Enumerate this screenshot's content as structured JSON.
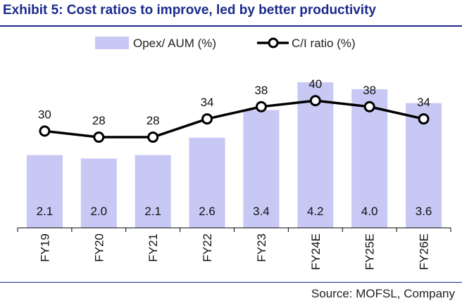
{
  "page": {
    "title": "Exhibit 5: Cost ratios to improve, led by better productivity",
    "source": "Source: MOFSL, Company"
  },
  "colors": {
    "title": "#1b2a8c",
    "bar": "#c8c8f5",
    "line": "#000000",
    "marker_fill": "#ffffff"
  },
  "chart_data": {
    "type": "bar",
    "categories": [
      "FY19",
      "FY20",
      "FY21",
      "FY22",
      "FY23",
      "FY24E",
      "FY25E",
      "FY26E"
    ],
    "series": [
      {
        "name": "Opex/ AUM (%)",
        "type": "bar",
        "axis": "left",
        "values": [
          2.1,
          2.0,
          2.1,
          2.6,
          3.4,
          4.2,
          4.0,
          3.6
        ]
      },
      {
        "name": "C/I ratio (%)",
        "type": "line",
        "axis": "right",
        "values": [
          30,
          28,
          28,
          34,
          38,
          40,
          38,
          34
        ]
      }
    ],
    "left_axis_range": [
      0,
      4.2
    ],
    "right_axis_range": [
      0,
      60
    ],
    "legend_position": "top-center",
    "grid": false
  }
}
